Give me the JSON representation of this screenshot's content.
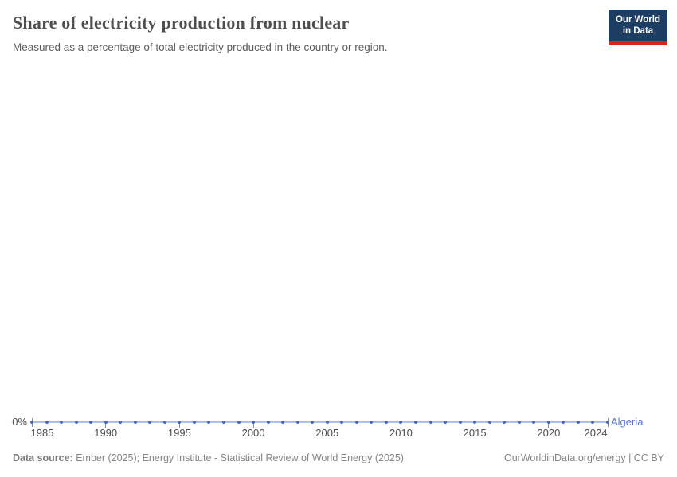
{
  "header": {
    "title": "Share of electricity production from nuclear",
    "subtitle": "Measured as a percentage of total electricity produced in the country or region."
  },
  "logo": {
    "line1": "Our World",
    "line2": "in Data",
    "bg_color": "#1d3d63",
    "accent_color": "#d0271f"
  },
  "chart_data": {
    "type": "line",
    "title": "Share of electricity production from nuclear",
    "xlabel": "",
    "ylabel": "",
    "x_range": [
      1985,
      2024
    ],
    "ylim_shown_min_label": "0%",
    "x_ticks": [
      1985,
      1990,
      1995,
      2000,
      2005,
      2010,
      2015,
      2020,
      2024
    ],
    "grid": false,
    "legend_position": "end-of-line",
    "series": [
      {
        "name": "Algeria",
        "x": [
          1985,
          1986,
          1987,
          1988,
          1989,
          1990,
          1991,
          1992,
          1993,
          1994,
          1995,
          1996,
          1997,
          1998,
          1999,
          2000,
          2001,
          2002,
          2003,
          2004,
          2005,
          2006,
          2007,
          2008,
          2009,
          2010,
          2011,
          2012,
          2013,
          2014,
          2015,
          2016,
          2017,
          2018,
          2019,
          2020,
          2021,
          2022,
          2023,
          2024
        ],
        "values": [
          0,
          0,
          0,
          0,
          0,
          0,
          0,
          0,
          0,
          0,
          0,
          0,
          0,
          0,
          0,
          0,
          0,
          0,
          0,
          0,
          0,
          0,
          0,
          0,
          0,
          0,
          0,
          0,
          0,
          0,
          0,
          0,
          0,
          0,
          0,
          0,
          0,
          0,
          0,
          0
        ]
      }
    ],
    "colors": {
      "line": "#a9c3e6",
      "dot": "#4a6ab0",
      "entity_label": "#5777b9"
    },
    "y_axis": {
      "min_label": "0%"
    }
  },
  "footer": {
    "datasource_label": "Data source:",
    "datasource_text": " Ember (2025); Energy Institute - Statistical Review of World Energy (2025)",
    "attribution": "OurWorldinData.org/energy | CC BY"
  }
}
